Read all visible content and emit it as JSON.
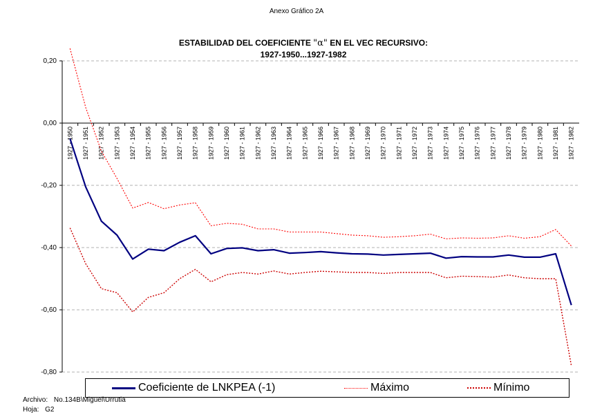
{
  "page": {
    "annex": "Anexo Gráfico 2A",
    "footer_file_label": "Archivo:",
    "footer_file_value": "No.134B\\Miguel\\Urrutia",
    "footer_sheet_label": "Hoja:",
    "footer_sheet_value": "G2"
  },
  "chart_data": {
    "type": "line",
    "title_part1": "ESTABILIDAD DEL COEFICIENTE",
    "title_symbol": "\"α\"",
    "title_part2": "EN EL VEC RECURSIVO:",
    "subtitle": "1927-1950...1927-1982",
    "ylim": [
      -0.8,
      0.2
    ],
    "y_ticks": [
      0.2,
      0.0,
      -0.2,
      -0.4,
      -0.6,
      -0.8
    ],
    "y_tick_labels": [
      "0,20",
      "0,00",
      "-0,20",
      "-0,40",
      "-0,60",
      "-0,80"
    ],
    "grid": "horizontal dashed",
    "legend_position": "bottom",
    "colors": {
      "coef": "#000080",
      "max": "#ff0000",
      "min": "#cc0000",
      "grid": "#b0b0b0"
    },
    "categories": [
      "1927 - 1950",
      "1927 - 1951",
      "1927 - 1952",
      "1927 - 1953",
      "1927 - 1954",
      "1927 - 1955",
      "1927 - 1956",
      "1927 - 1957",
      "1927 - 1958",
      "1927 - 1959",
      "1927 - 1960",
      "1927 - 1961",
      "1927 - 1962",
      "1927 - 1963",
      "1927 - 1964",
      "1927 - 1965",
      "1927 - 1966",
      "1927 - 1967",
      "1927 - 1968",
      "1927 - 1969",
      "1927 - 1970",
      "1927 - 1971",
      "1927 - 1972",
      "1927 - 1973",
      "1927 - 1974",
      "1927 - 1975",
      "1927 - 1976",
      "1927 - 1977",
      "1927 - 1978",
      "1927 - 1979",
      "1927 - 1980",
      "1927 - 1981",
      "1927 - 1982"
    ],
    "series": [
      {
        "key": "coef",
        "name": "Coeficiente de LNKPEA (-1)",
        "style": "solid",
        "values": [
          -0.05,
          -0.205,
          -0.315,
          -0.36,
          -0.437,
          -0.405,
          -0.41,
          -0.383,
          -0.362,
          -0.42,
          -0.403,
          -0.401,
          -0.41,
          -0.407,
          -0.418,
          -0.416,
          -0.413,
          -0.417,
          -0.42,
          -0.421,
          -0.424,
          -0.422,
          -0.42,
          -0.418,
          -0.434,
          -0.429,
          -0.43,
          -0.43,
          -0.424,
          -0.431,
          -0.431,
          -0.42,
          -0.585
        ]
      },
      {
        "key": "max",
        "name": "Máximo",
        "style": "dotted",
        "values": [
          0.24,
          0.05,
          -0.09,
          -0.178,
          -0.273,
          -0.255,
          -0.275,
          -0.263,
          -0.256,
          -0.33,
          -0.322,
          -0.325,
          -0.34,
          -0.34,
          -0.35,
          -0.35,
          -0.35,
          -0.355,
          -0.36,
          -0.362,
          -0.367,
          -0.365,
          -0.362,
          -0.357,
          -0.372,
          -0.369,
          -0.37,
          -0.369,
          -0.362,
          -0.37,
          -0.365,
          -0.342,
          -0.395
        ]
      },
      {
        "key": "min",
        "name": "Mínimo",
        "style": "dotted",
        "values": [
          -0.337,
          -0.452,
          -0.532,
          -0.545,
          -0.607,
          -0.56,
          -0.545,
          -0.5,
          -0.47,
          -0.51,
          -0.487,
          -0.48,
          -0.485,
          -0.475,
          -0.485,
          -0.48,
          -0.476,
          -0.478,
          -0.48,
          -0.48,
          -0.483,
          -0.48,
          -0.48,
          -0.48,
          -0.497,
          -0.492,
          -0.493,
          -0.495,
          -0.488,
          -0.497,
          -0.5,
          -0.5,
          -0.78
        ]
      }
    ]
  }
}
